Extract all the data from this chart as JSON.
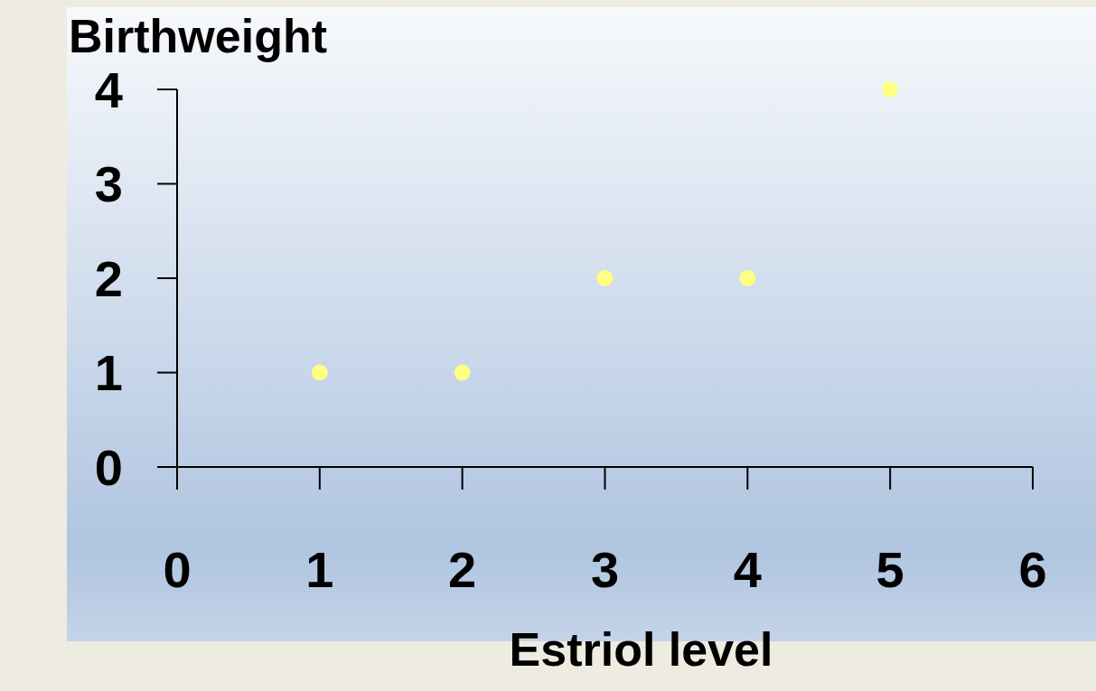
{
  "chart_data": {
    "type": "scatter",
    "xlabel": "Estriol level",
    "ylabel": "Birthweight",
    "x": [
      1,
      2,
      3,
      4,
      5
    ],
    "series": [
      {
        "color": "#ffff80",
        "values": [
          1,
          1,
          2,
          2,
          4
        ]
      }
    ],
    "xlim": [
      0,
      6
    ],
    "xticks": [
      0,
      1,
      2,
      3,
      4,
      5,
      6
    ],
    "ylim": [
      0,
      4
    ],
    "yticks": [
      0,
      1,
      2,
      3,
      4
    ],
    "grid": false,
    "legend": false,
    "marker": "circle"
  }
}
